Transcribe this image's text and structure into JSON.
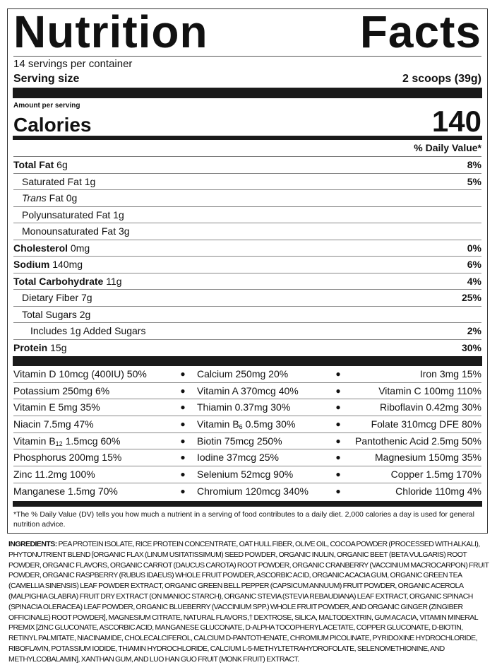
{
  "title": {
    "word1": "Nutrition",
    "word2": "Facts"
  },
  "servings_per_container": "14 servings per container",
  "serving_size": {
    "label": "Serving size",
    "value": "2 scoops (39g)"
  },
  "amount_per_serving": "Amount per serving",
  "calories": {
    "label": "Calories",
    "value": "140"
  },
  "daily_value_header": "% Daily Value*",
  "nutrients": [
    {
      "name": "Total Fat",
      "amount": " 6g",
      "dv": "8%",
      "bold": true,
      "indent": 0
    },
    {
      "name": "Saturated Fat 1g",
      "amount": "",
      "dv": "5%",
      "bold": false,
      "indent": 1
    },
    {
      "name": "Trans",
      "amount": " Fat 0g",
      "dv": "",
      "bold": false,
      "indent": 1,
      "italic": true
    },
    {
      "name": "Polyunsaturated Fat 1g",
      "amount": "",
      "dv": "",
      "bold": false,
      "indent": 1
    },
    {
      "name": "Monounsaturated Fat 3g",
      "amount": "",
      "dv": "",
      "bold": false,
      "indent": 1
    },
    {
      "name": "Cholesterol",
      "amount": " 0mg",
      "dv": "0%",
      "bold": true,
      "indent": 0
    },
    {
      "name": "Sodium",
      "amount": " 140mg",
      "dv": "6%",
      "bold": true,
      "indent": 0
    },
    {
      "name": "Total Carbohydrate",
      "amount": " 11g",
      "dv": "4%",
      "bold": true,
      "indent": 0
    },
    {
      "name": "Dietary Fiber 7g",
      "amount": "",
      "dv": "25%",
      "bold": false,
      "indent": 1
    },
    {
      "name": "Total Sugars 2g",
      "amount": "",
      "dv": "",
      "bold": false,
      "indent": 1
    },
    {
      "name": "Includes 1g Added Sugars",
      "amount": "",
      "dv": "2%",
      "bold": false,
      "indent": 2
    },
    {
      "name": "Protein",
      "amount": " 15g",
      "dv": "30%",
      "bold": true,
      "indent": 0
    }
  ],
  "vitamins": [
    [
      {
        "pre": "Vitamin D 10mcg (400IU) 50%"
      },
      {
        "pre": "Calcium 250mg 20%"
      },
      {
        "pre": "Iron 3mg 15%"
      }
    ],
    [
      {
        "pre": "Potassium 250mg 6%"
      },
      {
        "pre": "Vitamin A 370mcg 40%"
      },
      {
        "pre": "Vitamin C 100mg 110%"
      }
    ],
    [
      {
        "pre": "Vitamin E 5mg 35%"
      },
      {
        "pre": "Thiamin 0.37mg 30%"
      },
      {
        "pre": "Riboflavin 0.42mg 30%"
      }
    ],
    [
      {
        "pre": "Niacin 7.5mg 47%"
      },
      {
        "pre": "Vitamin B",
        "sub": "6",
        "post": " 0.5mg 30%"
      },
      {
        "pre": "Folate 310mcg DFE 80%"
      }
    ],
    [
      {
        "pre": "Vitamin B",
        "sub": "12",
        "post": " 1.5mcg 60%"
      },
      {
        "pre": "Biotin 75mcg 250%"
      },
      {
        "pre": "Pantothenic Acid 2.5mg 50%"
      }
    ],
    [
      {
        "pre": "Phosphorus 200mg 15%"
      },
      {
        "pre": "Iodine 37mcg 25%"
      },
      {
        "pre": "Magnesium 150mg 35%"
      }
    ],
    [
      {
        "pre": "Zinc 11.2mg 100%"
      },
      {
        "pre": "Selenium 52mcg 90%"
      },
      {
        "pre": "Copper 1.5mg 170%"
      }
    ],
    [
      {
        "pre": "Manganese 1.5mg 70%"
      },
      {
        "pre": "Chromium 120mcg 340%"
      },
      {
        "pre": "Chloride 110mg 4%"
      }
    ]
  ],
  "bullet": "●",
  "footnote": "*The % Daily Value (DV) tells you how much a nutrient in a serving of food contributes to a daily diet. 2,000 calories a day is used for general nutrition advice.",
  "ingredients": {
    "label": "INGREDIENTS:",
    "text": " PEA PROTEIN ISOLATE, RICE PROTEIN CONCENTRATE, OAT HULL FIBER, OLIVE OIL, COCOA POWDER (PROCESSED WITH ALKALI), PHYTONUTRIENT BLEND [ORGANIC FLAX (LINUM USITATISSIMUM) SEED POWDER, ORGANIC INULIN, ORGANIC BEET (BETA VULGARIS) ROOT POWDER, ORGANIC FLAVORS, ORGANIC CARROT (DAUCUS CAROTA) ROOT POWDER, ORGANIC CRANBERRY (VACCINIUM MACROCARPON) FRUIT POWDER, ORGANIC RASPBERRY (RUBUS IDAEUS) WHOLE FRUIT POWDER, ASCORBIC ACID, ORGANIC ACACIA GUM, ORGANIC GREEN TEA (CAMELLIA SINENSIS) LEAF POWDER EXTRACT, ORGANIC GREEN BELL PEPPER (CAPSICUM ANNUUM) FRUIT POWDER, ORGANIC ACEROLA (MALPIGHIA GLABRA) FRUIT DRY EXTRACT (ON MANIOC STARCH), ORGANIC STEVIA (STEVIA REBAUDIANA) LEAF EXTRACT, ORGANIC SPINACH (SPINACIA OLERACEA) LEAF POWDER, ORGANIC BLUEBERRY (VACCINIUM SPP.) WHOLE FRUIT POWDER, AND ORGANIC GINGER (ZINGIBER OFFICINALE) ROOT POWDER], MAGNESIUM CITRATE, NATURAL FLAVORS,† DEXTROSE, SILICA, MALTODEXTRIN, GUM ACACIA, VITAMIN MINERAL PREMIX [ZINC GLUCONATE, ASCORBIC ACID, MANGANESE GLUCONATE, D-ALPHA TOCOPHERYL ACETATE, COPPER GLUCONATE, D-BIOTIN, RETINYL PALMITATE, NIACINAMIDE, CHOLECALCIFEROL, CALCIUM D-PANTOTHENATE, CHROMIUM PICOLINATE, PYRIDOXINE HYDROCHLORIDE, RIBOFLAVIN, POTASSIUM IODIDE, THIAMIN HYDROCHLORIDE, CALCIUM L-5-METHYLTETRAHYDROFOLATE, SELENOMETHIONINE, AND METHYLCOBALAMIN], XANTHAN GUM, AND LUO HAN GUO FRUIT (MONK FRUIT) EXTRACT."
  }
}
